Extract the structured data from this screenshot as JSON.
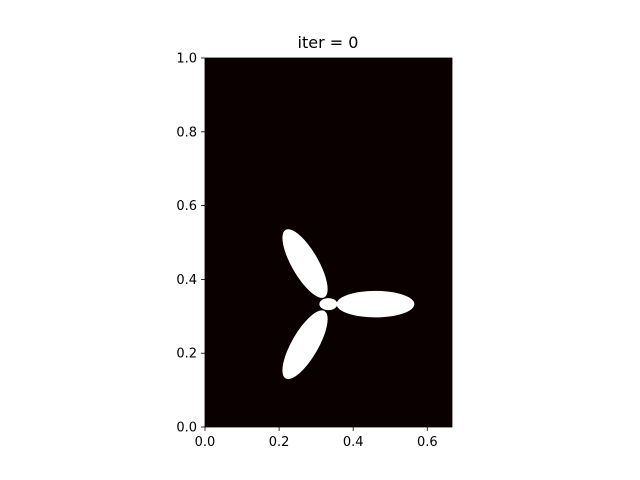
{
  "chart_data": {
    "type": "heatmap",
    "title": "iter = 0",
    "xlabel": "",
    "ylabel": "",
    "xlim": [
      0,
      0.6667
    ],
    "ylim": [
      0,
      1
    ],
    "x_ticks": [
      "0.0",
      "0.2",
      "0.4",
      "0.6"
    ],
    "y_ticks": [
      "0.0",
      "0.2",
      "0.4",
      "0.6",
      "0.8",
      "1.0"
    ],
    "x_tick_values": [
      0,
      0.2,
      0.4,
      0.6
    ],
    "y_tick_values": [
      0,
      0.2,
      0.4,
      0.6,
      0.8,
      1.0
    ],
    "grid": false,
    "colors": {
      "background": "#0b0000",
      "shape": "#ffffff"
    },
    "shape": {
      "hub": {
        "cx": 0.333,
        "cy": 0.333,
        "r": 0.039
      },
      "blades": [
        {
          "cx": 0.46,
          "cy": 0.333,
          "rx": 0.105,
          "ry": 0.036,
          "angle_deg": 0
        },
        {
          "cx": 0.27,
          "cy": 0.443,
          "rx": 0.105,
          "ry": 0.036,
          "angle_deg": 120
        },
        {
          "cx": 0.27,
          "cy": 0.223,
          "rx": 0.105,
          "ry": 0.036,
          "angle_deg": 240
        }
      ]
    }
  }
}
